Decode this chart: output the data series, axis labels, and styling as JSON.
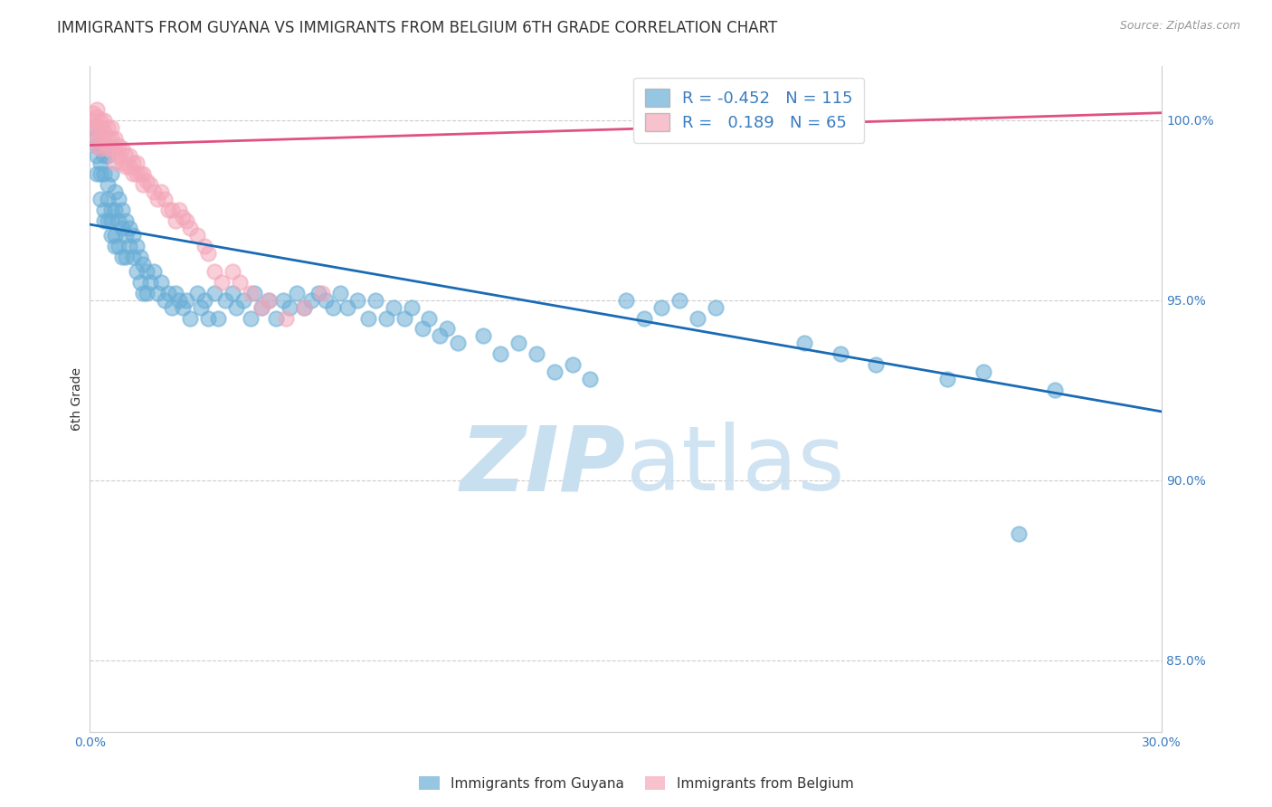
{
  "title": "IMMIGRANTS FROM GUYANA VS IMMIGRANTS FROM BELGIUM 6TH GRADE CORRELATION CHART",
  "source": "Source: ZipAtlas.com",
  "ylabel_label": "6th Grade",
  "x_min": 0.0,
  "x_max": 0.3,
  "y_min": 83.0,
  "y_max": 101.5,
  "x_ticks": [
    0.0,
    0.05,
    0.1,
    0.15,
    0.2,
    0.25,
    0.3
  ],
  "x_tick_labels": [
    "0.0%",
    "",
    "",
    "",
    "",
    "",
    "30.0%"
  ],
  "y_ticks": [
    85.0,
    90.0,
    95.0,
    100.0
  ],
  "y_tick_labels": [
    "85.0%",
    "90.0%",
    "95.0%",
    "100.0%"
  ],
  "guyana_R": -0.452,
  "guyana_N": 115,
  "belgium_R": 0.189,
  "belgium_N": 65,
  "blue_color": "#6aaed6",
  "pink_color": "#f4a7b9",
  "blue_line_color": "#1a6bb5",
  "pink_line_color": "#e05080",
  "legend_R_color": "#3a7cc1",
  "background_color": "#ffffff",
  "watermark_color": "#c8dff0",
  "title_fontsize": 12,
  "axis_label_fontsize": 10,
  "tick_fontsize": 10,
  "legend_fontsize": 13,
  "guyana_x": [
    0.001,
    0.001,
    0.002,
    0.002,
    0.002,
    0.003,
    0.003,
    0.003,
    0.003,
    0.004,
    0.004,
    0.004,
    0.004,
    0.005,
    0.005,
    0.005,
    0.005,
    0.006,
    0.006,
    0.006,
    0.006,
    0.007,
    0.007,
    0.007,
    0.007,
    0.008,
    0.008,
    0.008,
    0.009,
    0.009,
    0.009,
    0.01,
    0.01,
    0.01,
    0.011,
    0.011,
    0.012,
    0.012,
    0.013,
    0.013,
    0.014,
    0.014,
    0.015,
    0.015,
    0.016,
    0.016,
    0.017,
    0.018,
    0.019,
    0.02,
    0.021,
    0.022,
    0.023,
    0.024,
    0.025,
    0.026,
    0.027,
    0.028,
    0.03,
    0.031,
    0.032,
    0.033,
    0.035,
    0.036,
    0.038,
    0.04,
    0.041,
    0.043,
    0.045,
    0.046,
    0.048,
    0.05,
    0.052,
    0.054,
    0.056,
    0.058,
    0.06,
    0.062,
    0.064,
    0.066,
    0.068,
    0.07,
    0.072,
    0.075,
    0.078,
    0.08,
    0.083,
    0.085,
    0.088,
    0.09,
    0.093,
    0.095,
    0.098,
    0.1,
    0.103,
    0.11,
    0.115,
    0.12,
    0.125,
    0.13,
    0.135,
    0.14,
    0.15,
    0.155,
    0.16,
    0.165,
    0.17,
    0.175,
    0.2,
    0.21,
    0.22,
    0.24,
    0.25,
    0.26,
    0.27
  ],
  "guyana_y": [
    99.8,
    99.5,
    99.3,
    99.0,
    98.5,
    99.2,
    98.8,
    98.5,
    97.8,
    99.0,
    98.5,
    97.5,
    97.2,
    99.0,
    98.2,
    97.8,
    97.2,
    98.5,
    97.5,
    97.2,
    96.8,
    98.0,
    97.5,
    96.8,
    96.5,
    97.8,
    97.2,
    96.5,
    97.5,
    97.0,
    96.2,
    97.2,
    96.8,
    96.2,
    97.0,
    96.5,
    96.8,
    96.2,
    96.5,
    95.8,
    96.2,
    95.5,
    96.0,
    95.2,
    95.8,
    95.2,
    95.5,
    95.8,
    95.2,
    95.5,
    95.0,
    95.2,
    94.8,
    95.2,
    95.0,
    94.8,
    95.0,
    94.5,
    95.2,
    94.8,
    95.0,
    94.5,
    95.2,
    94.5,
    95.0,
    95.2,
    94.8,
    95.0,
    94.5,
    95.2,
    94.8,
    95.0,
    94.5,
    95.0,
    94.8,
    95.2,
    94.8,
    95.0,
    95.2,
    95.0,
    94.8,
    95.2,
    94.8,
    95.0,
    94.5,
    95.0,
    94.5,
    94.8,
    94.5,
    94.8,
    94.2,
    94.5,
    94.0,
    94.2,
    93.8,
    94.0,
    93.5,
    93.8,
    93.5,
    93.0,
    93.2,
    92.8,
    95.0,
    94.5,
    94.8,
    95.0,
    94.5,
    94.8,
    93.8,
    93.5,
    93.2,
    92.8,
    93.0,
    88.5,
    92.5
  ],
  "belgium_x": [
    0.001,
    0.001,
    0.001,
    0.002,
    0.002,
    0.002,
    0.002,
    0.002,
    0.003,
    0.003,
    0.003,
    0.003,
    0.004,
    0.004,
    0.004,
    0.005,
    0.005,
    0.005,
    0.006,
    0.006,
    0.006,
    0.007,
    0.007,
    0.007,
    0.008,
    0.008,
    0.009,
    0.009,
    0.01,
    0.01,
    0.011,
    0.011,
    0.012,
    0.012,
    0.013,
    0.013,
    0.014,
    0.015,
    0.015,
    0.016,
    0.017,
    0.018,
    0.019,
    0.02,
    0.021,
    0.022,
    0.023,
    0.024,
    0.025,
    0.026,
    0.027,
    0.028,
    0.03,
    0.032,
    0.033,
    0.035,
    0.037,
    0.04,
    0.042,
    0.045,
    0.048,
    0.05,
    0.055,
    0.06,
    0.065
  ],
  "belgium_y": [
    100.2,
    100.0,
    99.8,
    100.3,
    100.1,
    99.8,
    99.5,
    99.3,
    100.0,
    99.8,
    99.5,
    99.2,
    100.0,
    99.7,
    99.4,
    99.8,
    99.5,
    99.2,
    99.8,
    99.5,
    99.2,
    99.5,
    99.2,
    98.8,
    99.3,
    99.0,
    99.2,
    98.8,
    99.0,
    98.7,
    99.0,
    98.7,
    98.8,
    98.5,
    98.8,
    98.5,
    98.5,
    98.5,
    98.2,
    98.3,
    98.2,
    98.0,
    97.8,
    98.0,
    97.8,
    97.5,
    97.5,
    97.2,
    97.5,
    97.3,
    97.2,
    97.0,
    96.8,
    96.5,
    96.3,
    95.8,
    95.5,
    95.8,
    95.5,
    95.2,
    94.8,
    95.0,
    94.5,
    94.8,
    95.2
  ],
  "guyana_line_x0": 0.0,
  "guyana_line_y0": 97.1,
  "guyana_line_x1": 0.3,
  "guyana_line_y1": 91.9,
  "belgium_line_x0": 0.0,
  "belgium_line_y0": 99.3,
  "belgium_line_x1": 0.3,
  "belgium_line_y1": 100.2
}
